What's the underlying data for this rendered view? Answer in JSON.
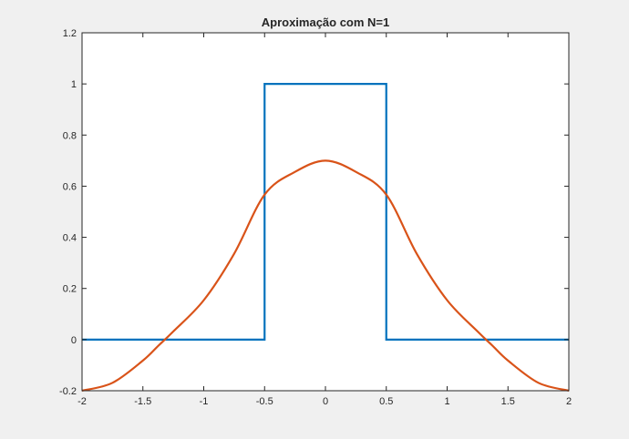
{
  "chart_data": {
    "type": "line",
    "title": "Aproximação com N=1",
    "xlabel": "",
    "ylabel": "",
    "xlim": [
      -2,
      2
    ],
    "ylim": [
      -0.2,
      1.2
    ],
    "xticks": [
      -2,
      -1.5,
      -1,
      -0.5,
      0,
      0.5,
      1,
      1.5,
      2
    ],
    "xtick_labels": [
      "-2",
      "-1.5",
      "-1",
      "-0.5",
      "0",
      "0.5",
      "1",
      "1.5",
      "2"
    ],
    "yticks": [
      -0.2,
      0,
      0.2,
      0.4,
      0.6,
      0.8,
      1,
      1.2
    ],
    "ytick_labels": [
      "-0.2",
      "0",
      "0.2",
      "0.4",
      "0.6",
      "0.8",
      "1",
      "1.2"
    ],
    "grid": false,
    "legend": "none",
    "series": [
      {
        "color": "#0072BD",
        "x": [
          -2,
          -0.5,
          -0.5,
          0.5,
          0.5,
          2
        ],
        "y": [
          0,
          0,
          1,
          1,
          0,
          0
        ]
      },
      {
        "color": "#D95319",
        "x": [
          -2,
          -1.75,
          -1.5,
          -1.375,
          -1.25,
          -1,
          -0.75,
          -0.5,
          -0.25,
          0,
          0.25,
          0.5,
          0.75,
          1,
          1.25,
          1.375,
          1.5,
          1.75,
          2
        ],
        "y": [
          -0.2,
          -0.169,
          -0.082,
          -0.025,
          0.032,
          0.154,
          0.336,
          0.567,
          0.656,
          0.7,
          0.656,
          0.567,
          0.336,
          0.154,
          0.032,
          -0.025,
          -0.082,
          -0.169,
          -0.2
        ]
      }
    ]
  }
}
